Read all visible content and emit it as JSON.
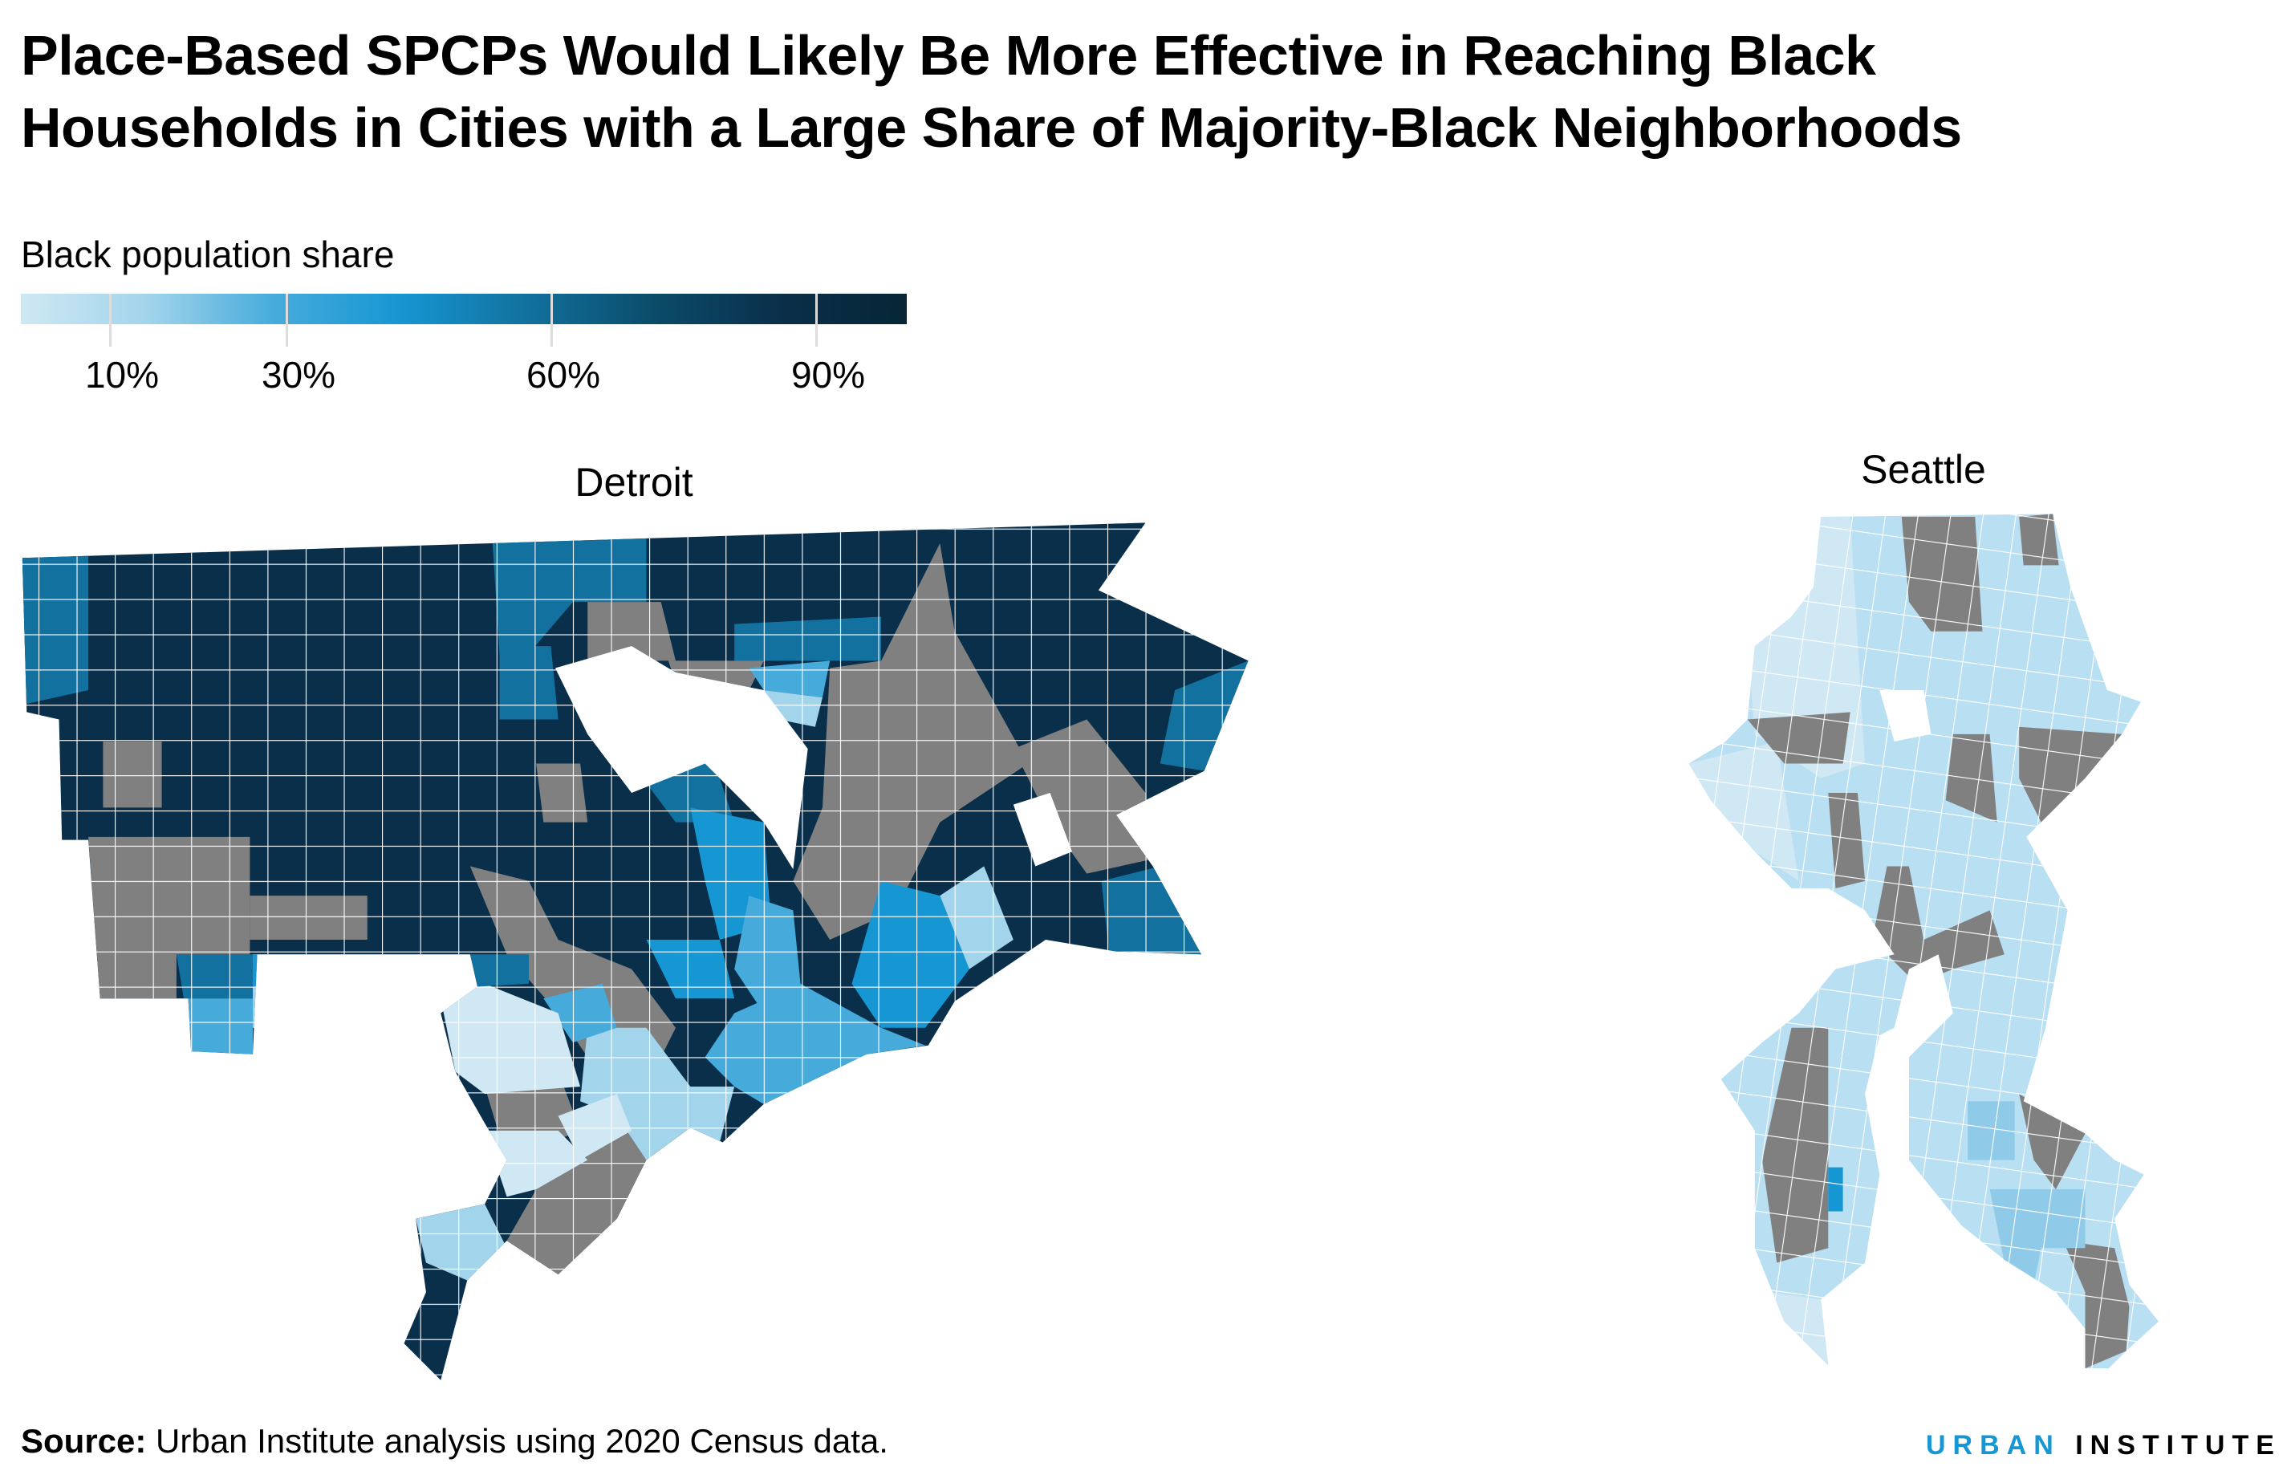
{
  "title": {
    "line1": "Place-Based SPCPs Would Likely Be More Effective in Reaching Black",
    "line2": "Households in Cities with a Large Share of Majority-Black Neighborhoods"
  },
  "legend": {
    "title": "Black population share",
    "ticks": [
      "10%",
      "30%",
      "60%",
      "90%"
    ],
    "colors": [
      "#cfe8f3",
      "#a2d4ec",
      "#46abdb",
      "#1696d2",
      "#12719e",
      "#0a4c6a",
      "#0a2f4a",
      "#062635"
    ],
    "no_data_color": "#808080"
  },
  "maps": {
    "detroit": {
      "label": "Detroit"
    },
    "seattle": {
      "label": "Seattle"
    }
  },
  "footer": {
    "source_label": "Source:",
    "source_text": " Urban Institute analysis using 2020 Census data."
  },
  "logo": {
    "urban": "URBAN",
    "institute": "INSTITUTE"
  }
}
